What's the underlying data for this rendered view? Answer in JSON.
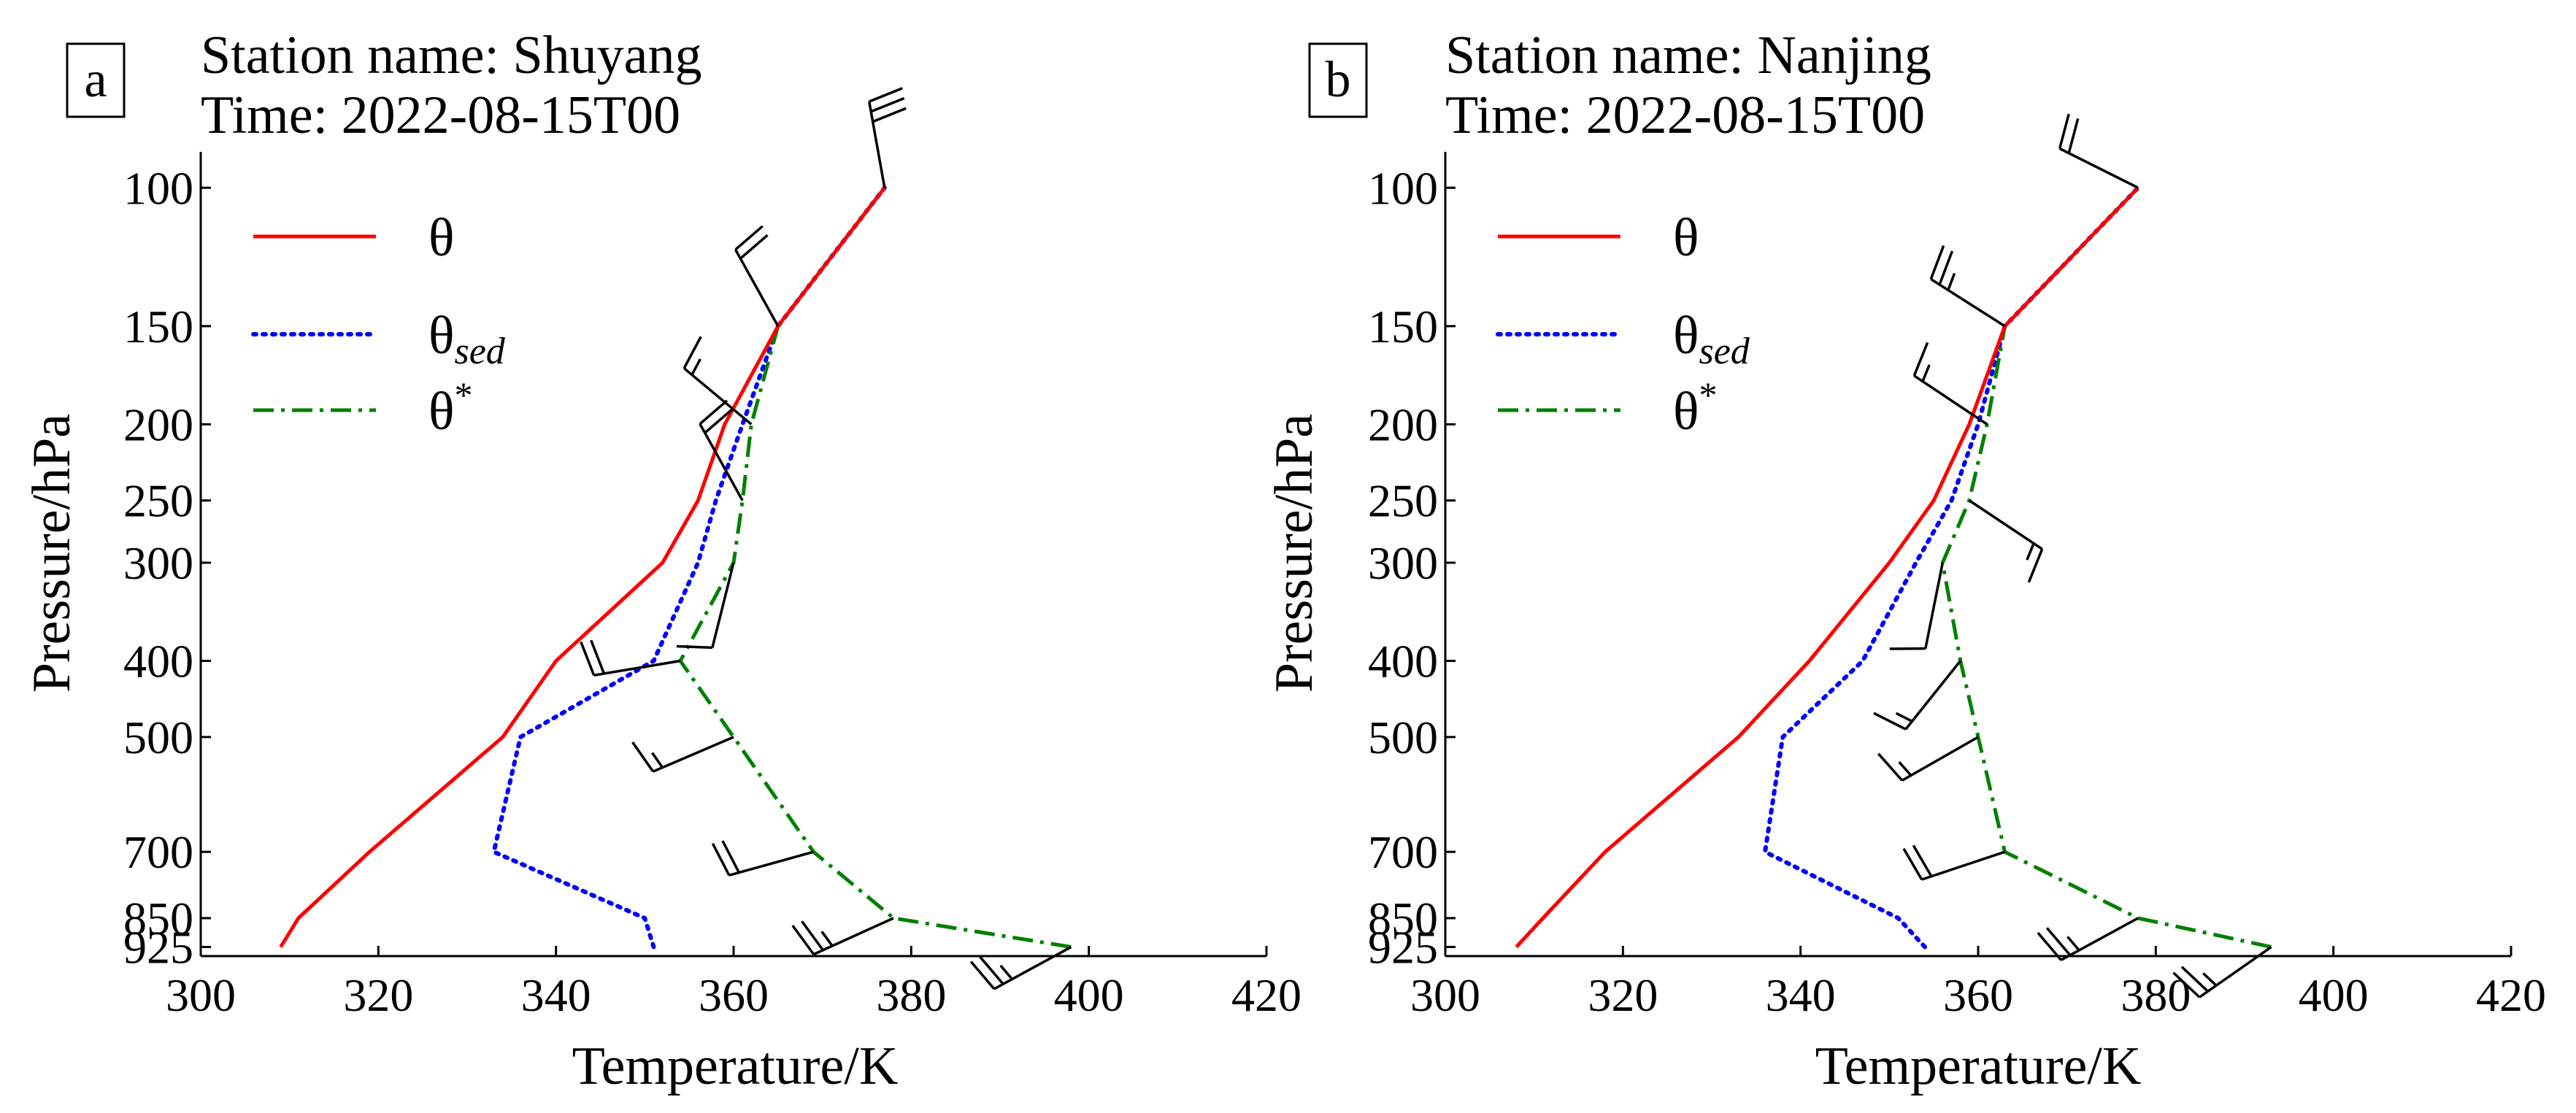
{
  "chart_data": [
    {
      "type": "line",
      "panel_label": "a",
      "title_lines": [
        "Station name: Shuyang",
        "Time: 2022-08-15T00"
      ],
      "xlabel": "Temperature/K",
      "ylabel": "Pressure/hPa",
      "xlim": [
        300,
        420
      ],
      "ylim": [
        950,
        90
      ],
      "yscale": "log",
      "xticks": [
        300,
        320,
        340,
        360,
        380,
        400,
        420
      ],
      "yticks": [
        100,
        150,
        200,
        250,
        300,
        400,
        500,
        700,
        850,
        925
      ],
      "legend_location": "upper-left",
      "legend": [
        {
          "key": "theta",
          "symbol": "θ",
          "sub": "",
          "sup": "",
          "color": "#ff0000",
          "dash": "solid"
        },
        {
          "key": "theta_sed",
          "symbol": "θ",
          "sub": "sed",
          "sup": "",
          "color": "#0000ff",
          "dash": "dotted"
        },
        {
          "key": "theta_star",
          "symbol": "θ",
          "sub": "",
          "sup": "*",
          "color": "#008000",
          "dash": "dashdot"
        }
      ],
      "series": [
        {
          "key": "theta",
          "pressure": [
            925,
            850,
            700,
            500,
            400,
            300,
            250,
            200,
            150,
            100
          ],
          "values": [
            309,
            311,
            319,
            334,
            340,
            352,
            356,
            359,
            365,
            377
          ]
        },
        {
          "key": "theta_sed",
          "pressure": [
            925,
            850,
            700,
            500,
            400,
            300,
            250,
            200,
            150,
            100
          ],
          "values": [
            351,
            350,
            333,
            336,
            351,
            356,
            358,
            361,
            365,
            377
          ]
        },
        {
          "key": "theta_star",
          "pressure": [
            925,
            850,
            700,
            500,
            400,
            300,
            250,
            200,
            150,
            100
          ],
          "values": [
            398,
            378,
            369,
            360,
            354,
            360,
            361,
            362,
            365,
            377
          ]
        }
      ],
      "wind_barbs": [
        {
          "pressure": 925,
          "u": 22,
          "v": 12
        },
        {
          "pressure": 850,
          "u": 22,
          "v": 10
        },
        {
          "pressure": 700,
          "u": 18,
          "v": 5
        },
        {
          "pressure": 500,
          "u": 14,
          "v": 6
        },
        {
          "pressure": 400,
          "u": 18,
          "v": 3
        },
        {
          "pressure": 300,
          "u": 3,
          "v": 12
        },
        {
          "pressure": 250,
          "u": 10,
          "v": -18
        },
        {
          "pressure": 200,
          "u": 12,
          "v": -10
        },
        {
          "pressure": 150,
          "u": 10,
          "v": -18
        },
        {
          "pressure": 100,
          "u": 5,
          "v": -28
        }
      ]
    },
    {
      "type": "line",
      "panel_label": "b",
      "title_lines": [
        "Station name: Nanjing",
        "Time: 2022-08-15T00"
      ],
      "xlabel": "Temperature/K",
      "ylabel": "Pressure/hPa",
      "xlim": [
        300,
        420
      ],
      "ylim": [
        950,
        90
      ],
      "yscale": "log",
      "xticks": [
        300,
        320,
        340,
        360,
        380,
        400,
        420
      ],
      "yticks": [
        100,
        150,
        200,
        250,
        300,
        400,
        500,
        700,
        850,
        925
      ],
      "legend_location": "upper-left",
      "legend": [
        {
          "key": "theta",
          "symbol": "θ",
          "sub": "",
          "sup": "",
          "color": "#ff0000",
          "dash": "solid"
        },
        {
          "key": "theta_sed",
          "symbol": "θ",
          "sub": "sed",
          "sup": "",
          "color": "#0000ff",
          "dash": "dotted"
        },
        {
          "key": "theta_star",
          "symbol": "θ",
          "sub": "",
          "sup": "*",
          "color": "#008000",
          "dash": "dashdot"
        }
      ],
      "series": [
        {
          "key": "theta",
          "pressure": [
            925,
            850,
            700,
            500,
            400,
            300,
            250,
            200,
            150,
            100
          ],
          "values": [
            308,
            311,
            318,
            333,
            341,
            350,
            355,
            359,
            363,
            378
          ]
        },
        {
          "key": "theta_sed",
          "pressure": [
            925,
            850,
            700,
            500,
            400,
            300,
            250,
            200,
            150,
            100
          ],
          "values": [
            354,
            351,
            336,
            338,
            347,
            353,
            357,
            360,
            363,
            378
          ]
        },
        {
          "key": "theta_star",
          "pressure": [
            925,
            850,
            700,
            500,
            400,
            300,
            250,
            200,
            150,
            100
          ],
          "values": [
            393,
            378,
            363,
            360,
            358,
            356,
            359,
            361,
            363,
            378
          ]
        }
      ],
      "wind_barbs": [
        {
          "pressure": 925,
          "u": 20,
          "v": 14
        },
        {
          "pressure": 850,
          "u": 22,
          "v": 12
        },
        {
          "pressure": 700,
          "u": 18,
          "v": 6
        },
        {
          "pressure": 500,
          "u": 14,
          "v": 8
        },
        {
          "pressure": 400,
          "u": 8,
          "v": 10
        },
        {
          "pressure": 300,
          "u": 2,
          "v": 10
        },
        {
          "pressure": 250,
          "u": -12,
          "v": 8
        },
        {
          "pressure": 200,
          "u": 12,
          "v": -8
        },
        {
          "pressure": 150,
          "u": 22,
          "v": -14
        },
        {
          "pressure": 100,
          "u": 20,
          "v": -10
        }
      ]
    }
  ]
}
